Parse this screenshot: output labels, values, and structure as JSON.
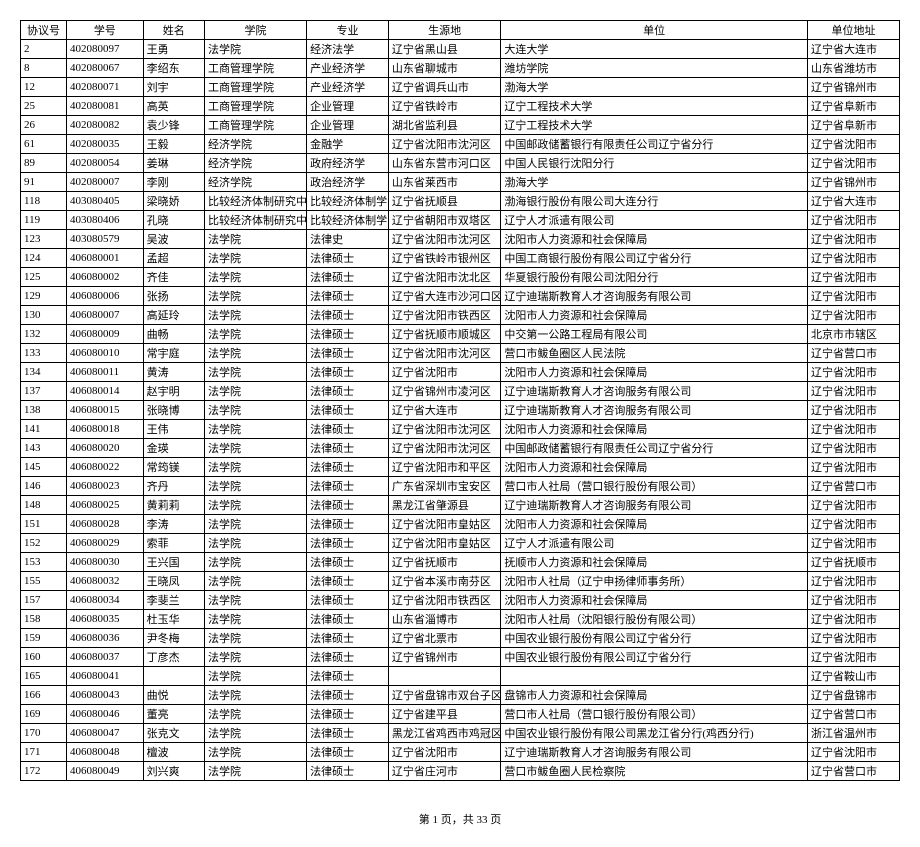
{
  "columns": [
    "协议号",
    "学号",
    "姓名",
    "学院",
    "专业",
    "生源地",
    "单位",
    "单位地址"
  ],
  "rows": [
    [
      "2",
      "402080097",
      "王勇",
      "法学院",
      "经济法学",
      "辽宁省黑山县",
      "大连大学",
      "辽宁省大连市"
    ],
    [
      "8",
      "402080067",
      "李绍东",
      "工商管理学院",
      "产业经济学",
      "山东省聊城市",
      "潍坊学院",
      "山东省潍坊市"
    ],
    [
      "12",
      "402080071",
      "刘宇",
      "工商管理学院",
      "产业经济学",
      "辽宁省调兵山市",
      "渤海大学",
      "辽宁省锦州市"
    ],
    [
      "25",
      "402080081",
      "高英",
      "工商管理学院",
      "企业管理",
      "辽宁省铁岭市",
      "辽宁工程技术大学",
      "辽宁省阜新市"
    ],
    [
      "26",
      "402080082",
      "袁少锋",
      "工商管理学院",
      "企业管理",
      "湖北省监利县",
      "辽宁工程技术大学",
      "辽宁省阜新市"
    ],
    [
      "61",
      "402080035",
      "王毅",
      "经济学院",
      "金融学",
      "辽宁省沈阳市沈河区",
      "中国邮政储蓄银行有限责任公司辽宁省分行",
      "辽宁省沈阳市"
    ],
    [
      "89",
      "402080054",
      "姜琳",
      "经济学院",
      "政府经济学",
      "山东省东营市河口区",
      "中国人民银行沈阳分行",
      "辽宁省沈阳市"
    ],
    [
      "91",
      "402080007",
      "李刚",
      "经济学院",
      "政治经济学",
      "山东省莱西市",
      "渤海大学",
      "辽宁省锦州市"
    ],
    [
      "118",
      "403080405",
      "梁晓娇",
      "比较经济体制研究中心",
      "比较经济体制学",
      "辽宁省抚顺县",
      "渤海银行股份有限公司大连分行",
      "辽宁省大连市"
    ],
    [
      "119",
      "403080406",
      "孔晓",
      "比较经济体制研究中心",
      "比较经济体制学",
      "辽宁省朝阳市双塔区",
      "辽宁人才派遣有限公司",
      "辽宁省沈阳市"
    ],
    [
      "123",
      "403080579",
      "吴波",
      "法学院",
      "法律史",
      "辽宁省沈阳市沈河区",
      "沈阳市人力资源和社会保障局",
      "辽宁省沈阳市"
    ],
    [
      "124",
      "406080001",
      "孟超",
      "法学院",
      "法律硕士",
      "辽宁省铁岭市银州区",
      "中国工商银行股份有限公司辽宁省分行",
      "辽宁省沈阳市"
    ],
    [
      "125",
      "406080002",
      "齐佳",
      "法学院",
      "法律硕士",
      "辽宁省沈阳市沈北区",
      "华夏银行股份有限公司沈阳分行",
      "辽宁省沈阳市"
    ],
    [
      "129",
      "406080006",
      "张扬",
      "法学院",
      "法律硕士",
      "辽宁省大连市沙河口区",
      "辽宁迪瑞斯教育人才咨询服务有限公司",
      "辽宁省沈阳市"
    ],
    [
      "130",
      "406080007",
      "高延玲",
      "法学院",
      "法律硕士",
      "辽宁省沈阳市铁西区",
      "沈阳市人力资源和社会保障局",
      "辽宁省沈阳市"
    ],
    [
      "132",
      "406080009",
      "曲畅",
      "法学院",
      "法律硕士",
      "辽宁省抚顺市顺城区",
      "中交第一公路工程局有限公司",
      "北京市市辖区"
    ],
    [
      "133",
      "406080010",
      "常宇庭",
      "法学院",
      "法律硕士",
      "辽宁省沈阳市沈河区",
      "营口市鲅鱼圈区人民法院",
      "辽宁省营口市"
    ],
    [
      "134",
      "406080011",
      "黄涛",
      "法学院",
      "法律硕士",
      "辽宁省沈阳市",
      "沈阳市人力资源和社会保障局",
      "辽宁省沈阳市"
    ],
    [
      "137",
      "406080014",
      "赵宇明",
      "法学院",
      "法律硕士",
      "辽宁省锦州市凌河区",
      "辽宁迪瑞斯教育人才咨询服务有限公司",
      "辽宁省沈阳市"
    ],
    [
      "138",
      "406080015",
      "张晓博",
      "法学院",
      "法律硕士",
      "辽宁省大连市",
      "辽宁迪瑞斯教育人才咨询服务有限公司",
      "辽宁省沈阳市"
    ],
    [
      "141",
      "406080018",
      "王伟",
      "法学院",
      "法律硕士",
      "辽宁省沈阳市沈河区",
      "沈阳市人力资源和社会保障局",
      "辽宁省沈阳市"
    ],
    [
      "143",
      "406080020",
      "金瑛",
      "法学院",
      "法律硕士",
      "辽宁省沈阳市沈河区",
      "中国邮政储蓄银行有限责任公司辽宁省分行",
      "辽宁省沈阳市"
    ],
    [
      "145",
      "406080022",
      "常筠镁",
      "法学院",
      "法律硕士",
      "辽宁省沈阳市和平区",
      "沈阳市人力资源和社会保障局",
      "辽宁省沈阳市"
    ],
    [
      "146",
      "406080023",
      "齐丹",
      "法学院",
      "法律硕士",
      "广东省深圳市宝安区",
      "营口市人社局（营口银行股份有限公司）",
      "辽宁省营口市"
    ],
    [
      "148",
      "406080025",
      "黄莉莉",
      "法学院",
      "法律硕士",
      "黑龙江省肇源县",
      "辽宁迪瑞斯教育人才咨询服务有限公司",
      "辽宁省沈阳市"
    ],
    [
      "151",
      "406080028",
      "李涛",
      "法学院",
      "法律硕士",
      "辽宁省沈阳市皇姑区",
      "沈阳市人力资源和社会保障局",
      "辽宁省沈阳市"
    ],
    [
      "152",
      "406080029",
      "索菲",
      "法学院",
      "法律硕士",
      "辽宁省沈阳市皇姑区",
      "辽宁人才派遣有限公司",
      "辽宁省沈阳市"
    ],
    [
      "153",
      "406080030",
      "王兴国",
      "法学院",
      "法律硕士",
      "辽宁省抚顺市",
      "抚顺市人力资源和社会保障局",
      "辽宁省抚顺市"
    ],
    [
      "155",
      "406080032",
      "王晓凤",
      "法学院",
      "法律硕士",
      "辽宁省本溪市南芬区",
      "沈阳市人社局（辽宁申扬律师事务所）",
      "辽宁省沈阳市"
    ],
    [
      "157",
      "406080034",
      "李斐兰",
      "法学院",
      "法律硕士",
      "辽宁省沈阳市铁西区",
      "沈阳市人力资源和社会保障局",
      "辽宁省沈阳市"
    ],
    [
      "158",
      "406080035",
      "杜玉华",
      "法学院",
      "法律硕士",
      "山东省淄博市",
      "沈阳市人社局（沈阳银行股份有限公司）",
      "辽宁省沈阳市"
    ],
    [
      "159",
      "406080036",
      "尹冬梅",
      "法学院",
      "法律硕士",
      "辽宁省北票市",
      "中国农业银行股份有限公司辽宁省分行",
      "辽宁省沈阳市"
    ],
    [
      "160",
      "406080037",
      "丁彦杰",
      "法学院",
      "法律硕士",
      "辽宁省锦州市",
      "中国农业银行股份有限公司辽宁省分行",
      "辽宁省沈阳市"
    ],
    [
      "165",
      "406080041",
      "",
      "法学院",
      "法律硕士",
      "",
      "",
      "辽宁省鞍山市"
    ],
    [
      "166",
      "406080043",
      "曲悦",
      "法学院",
      "法律硕士",
      "辽宁省盘锦市双台子区",
      "盘锦市人力资源和社会保障局",
      "辽宁省盘锦市"
    ],
    [
      "169",
      "406080046",
      "董亮",
      "法学院",
      "法律硕士",
      "辽宁省建平县",
      "营口市人社局（营口银行股份有限公司）",
      "辽宁省营口市"
    ],
    [
      "170",
      "406080047",
      "张克文",
      "法学院",
      "法律硕士",
      "黑龙江省鸡西市鸡冠区",
      "中国农业银行股份有限公司黑龙江省分行(鸡西分行)",
      "浙江省温州市"
    ],
    [
      "171",
      "406080048",
      "檀波",
      "法学院",
      "法律硕士",
      "辽宁省沈阳市",
      "辽宁迪瑞斯教育人才咨询服务有限公司",
      "辽宁省沈阳市"
    ],
    [
      "172",
      "406080049",
      "刘兴爽",
      "法学院",
      "法律硕士",
      "辽宁省庄河市",
      "营口市鲅鱼圈人民检察院",
      "辽宁省营口市"
    ]
  ],
  "footer": "第 1 页，共 33 页"
}
